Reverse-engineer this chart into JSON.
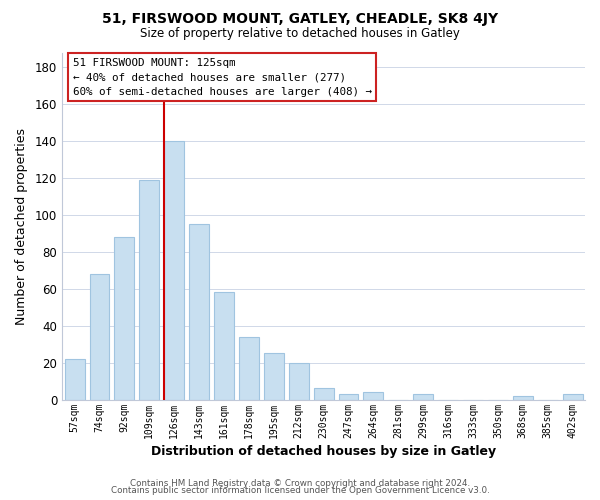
{
  "title1": "51, FIRSWOOD MOUNT, GATLEY, CHEADLE, SK8 4JY",
  "title2": "Size of property relative to detached houses in Gatley",
  "xlabel": "Distribution of detached houses by size in Gatley",
  "ylabel": "Number of detached properties",
  "bar_color": "#c8dff0",
  "bar_edge_color": "#a0c4e0",
  "categories": [
    "57sqm",
    "74sqm",
    "92sqm",
    "109sqm",
    "126sqm",
    "143sqm",
    "161sqm",
    "178sqm",
    "195sqm",
    "212sqm",
    "230sqm",
    "247sqm",
    "264sqm",
    "281sqm",
    "299sqm",
    "316sqm",
    "333sqm",
    "350sqm",
    "368sqm",
    "385sqm",
    "402sqm"
  ],
  "values": [
    22,
    68,
    88,
    119,
    140,
    95,
    58,
    34,
    25,
    20,
    6,
    3,
    4,
    0,
    3,
    0,
    0,
    0,
    2,
    0,
    3
  ],
  "vline_color": "#cc0000",
  "vline_bar_index": 4,
  "annotation_title": "51 FIRSWOOD MOUNT: 125sqm",
  "annotation_line1": "← 40% of detached houses are smaller (277)",
  "annotation_line2": "60% of semi-detached houses are larger (408) →",
  "ylim": [
    0,
    188
  ],
  "yticks": [
    0,
    20,
    40,
    60,
    80,
    100,
    120,
    140,
    160,
    180
  ],
  "footer1": "Contains HM Land Registry data © Crown copyright and database right 2024.",
  "footer2": "Contains public sector information licensed under the Open Government Licence v3.0."
}
